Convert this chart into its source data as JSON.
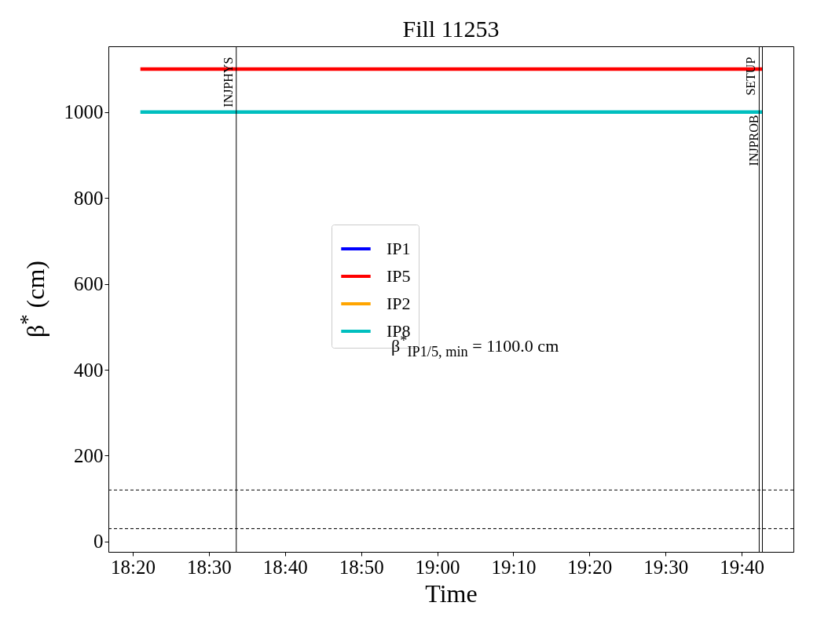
{
  "chart_data": {
    "type": "line",
    "title": "Fill 11253",
    "xlabel": "Time",
    "ylabel": "β$^{*}$ (cm)",
    "xlim": [
      18.28,
      19.78
    ],
    "ylim": [
      -24,
      1153
    ],
    "yticks": [
      0,
      200,
      400,
      600,
      800,
      1000
    ],
    "xticks": [
      {
        "value": 18.3333,
        "label": "18:20"
      },
      {
        "value": 18.5,
        "label": "18:30"
      },
      {
        "value": 18.6667,
        "label": "18:40"
      },
      {
        "value": 18.8333,
        "label": "18:50"
      },
      {
        "value": 19,
        "label": "19:00"
      },
      {
        "value": 19.1667,
        "label": "19:10"
      },
      {
        "value": 19.3333,
        "label": "19:20"
      },
      {
        "value": 19.5,
        "label": "19:30"
      },
      {
        "value": 19.6667,
        "label": "19:40"
      }
    ],
    "x": [
      18.35,
      19.712
    ],
    "series": [
      {
        "name": "IP1",
        "color": "#0000ff",
        "values": [
          null,
          null
        ]
      },
      {
        "name": "IP5",
        "color": "#ff0000",
        "values": [
          1100,
          1100
        ]
      },
      {
        "name": "IP2",
        "color": "#ffa500",
        "values": [
          null,
          null
        ]
      },
      {
        "name": "IP8",
        "color": "#00bfbf",
        "values": [
          1000,
          1000
        ]
      }
    ],
    "ref_lines": [
      {
        "axis": "x",
        "value": 18.56,
        "label": "INJPHYS",
        "color": "#000000",
        "line_style": "solid"
      },
      {
        "axis": "x",
        "value": 19.705,
        "label": "SETUP",
        "color": "#000000",
        "line_style": "solid"
      },
      {
        "axis": "x",
        "value": 19.712,
        "label": "INJPROB",
        "color": "#000000",
        "line_style": "solid"
      },
      {
        "axis": "y",
        "value": 120,
        "color": "#000000",
        "line_style": "dashed"
      },
      {
        "axis": "y",
        "value": 30,
        "color": "#000000",
        "line_style": "dashed"
      }
    ],
    "annotations": [
      "β$^{*}$$_{IP1/5, min}$ = 1100.0 cm"
    ],
    "legend": "center",
    "grid": false
  }
}
